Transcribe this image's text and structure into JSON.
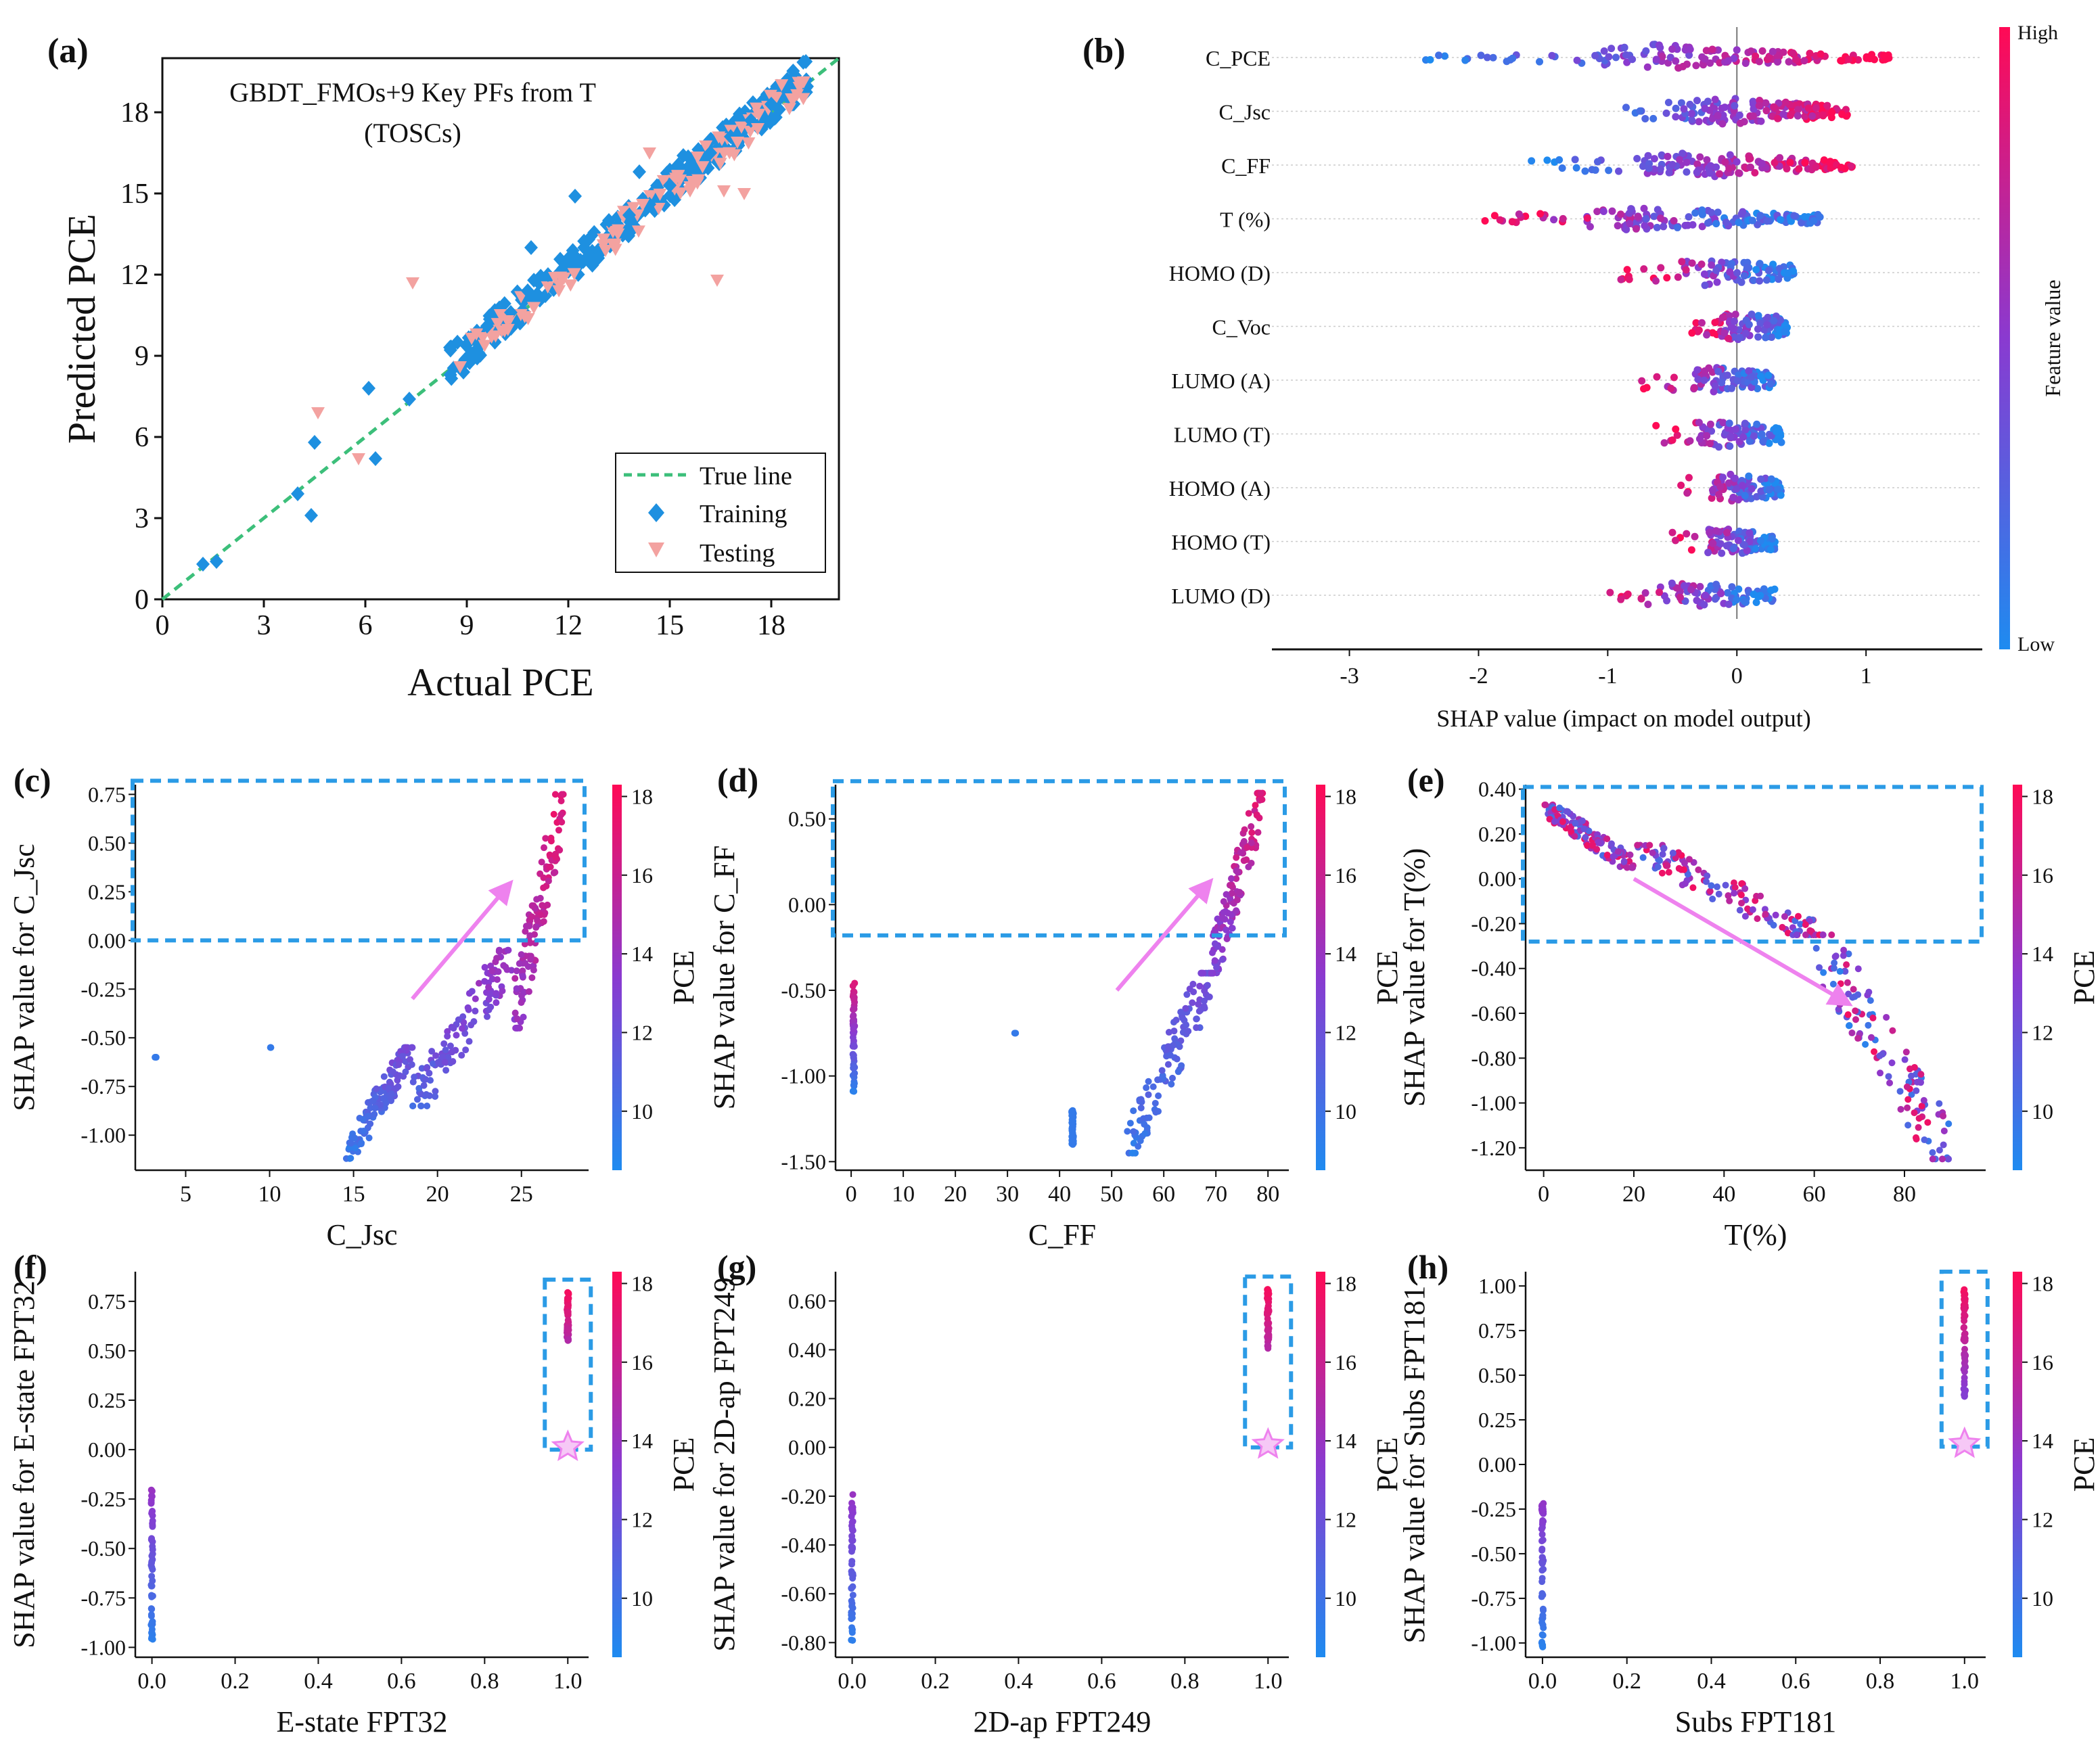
{
  "colors": {
    "low": "#1e8bf0",
    "mid": "#8a3ad0",
    "high": "#ff0a55",
    "training": "#1e90e0",
    "testing": "#f3a2a0",
    "true_line": "#3cbf7a",
    "dash_box": "#2b9be6",
    "arrow": "#ee82ee"
  },
  "chart_data": [
    {
      "id": "a",
      "panel_label": "(a)",
      "type": "scatter",
      "title": "GBDT_FMOs+9 Key PFs from T",
      "subtitle": "(TOSCs)",
      "xlabel": "Actual PCE",
      "ylabel": "Predicted PCE",
      "xlim": [
        0,
        20
      ],
      "ylim": [
        0,
        20
      ],
      "xticks": [
        "0",
        "3",
        "6",
        "9",
        "12",
        "15",
        "18"
      ],
      "yticks": [
        "0",
        "3",
        "6",
        "9",
        "12",
        "15",
        "18"
      ],
      "legend": [
        "True line",
        "Training",
        "Testing"
      ],
      "legend_position": "bottom-right",
      "true_line": [
        [
          0,
          0
        ],
        [
          20,
          20
        ]
      ],
      "series": [
        {
          "name": "Training",
          "marker": "diamond",
          "points": [
            [
              1.2,
              1.3
            ],
            [
              1.6,
              1.4
            ],
            [
              4.0,
              3.9
            ],
            [
              4.4,
              3.1
            ],
            [
              4.5,
              5.8
            ],
            [
              6.1,
              7.8
            ],
            [
              6.3,
              5.2
            ],
            [
              7.3,
              7.4
            ],
            [
              8.9,
              8.4
            ],
            [
              9.3,
              9.1
            ],
            [
              9.6,
              10.1
            ],
            [
              10.3,
              10.6
            ],
            [
              10.8,
              11.4
            ],
            [
              11.4,
              12.0
            ],
            [
              12.0,
              12.6
            ],
            [
              12.6,
              13.3
            ],
            [
              13.2,
              14.0
            ],
            [
              13.8,
              14.2
            ],
            [
              14.4,
              14.6
            ],
            [
              15.0,
              15.3
            ],
            [
              15.6,
              16.0
            ],
            [
              16.2,
              16.5
            ],
            [
              16.8,
              17.1
            ],
            [
              17.4,
              17.7
            ],
            [
              18.0,
              18.3
            ],
            [
              18.5,
              18.6
            ],
            [
              10.9,
              13.0
            ],
            [
              12.2,
              14.9
            ],
            [
              14.1,
              15.8
            ],
            [
              15.4,
              16.4
            ]
          ]
        },
        {
          "name": "Testing",
          "marker": "triangle-down",
          "points": [
            [
              4.6,
              6.9
            ],
            [
              5.8,
              5.2
            ],
            [
              7.4,
              11.7
            ],
            [
              8.8,
              8.6
            ],
            [
              10.2,
              10.3
            ],
            [
              11.6,
              11.9
            ],
            [
              13.1,
              12.9
            ],
            [
              14.2,
              14.6
            ],
            [
              14.4,
              16.5
            ],
            [
              15.6,
              15.1
            ],
            [
              16.4,
              11.8
            ],
            [
              17.0,
              16.9
            ],
            [
              17.6,
              17.4
            ],
            [
              18.6,
              18.5
            ],
            [
              16.6,
              15.1
            ],
            [
              17.2,
              15.0
            ]
          ]
        }
      ]
    },
    {
      "id": "b",
      "panel_label": "(b)",
      "type": "beeswarm",
      "xlabel": "SHAP value (impact on model output)",
      "xlim": [
        -3.6,
        1.9
      ],
      "xticks": [
        -3,
        -2,
        -1,
        0,
        1
      ],
      "features": [
        "C_PCE",
        "C_Jsc",
        "C_FF",
        "T (%)",
        "HOMO (D)",
        "C_Voc",
        "LUMO (A)",
        "LUMO (T)",
        "HOMO (A)",
        "HOMO (T)",
        "LUMO (D)"
      ],
      "feature_ranges": [
        [
          -2.45,
          1.22
        ],
        [
          -1.0,
          0.9
        ],
        [
          -1.6,
          0.9
        ],
        [
          -1.95,
          0.65
        ],
        [
          -0.9,
          0.45
        ],
        [
          -0.35,
          0.4
        ],
        [
          -0.75,
          0.3
        ],
        [
          -0.65,
          0.35
        ],
        [
          -0.45,
          0.35
        ],
        [
          -0.5,
          0.3
        ],
        [
          -1.05,
          0.3
        ]
      ],
      "colorbar": {
        "label": "Feature value",
        "high": "High",
        "low": "Low"
      }
    },
    {
      "id": "c",
      "panel_label": "(c)",
      "type": "scatter",
      "xlabel": "C_Jsc",
      "ylabel": "SHAP value for C_Jsc",
      "xlim": [
        2,
        29
      ],
      "ylim": [
        -1.18,
        0.8
      ],
      "xticks": [
        "5",
        "10",
        "15",
        "20",
        "25"
      ],
      "yticks": [
        "-1.00",
        "-0.75",
        "-0.50",
        "-0.25",
        "0.00",
        "0.25",
        "0.50",
        "0.75"
      ],
      "highlight_box_y": [
        0.0,
        0.82
      ],
      "arrow": [
        [
          18.5,
          -0.3
        ],
        [
          24.2,
          0.28
        ]
      ],
      "colorbar": {
        "label": "PCE",
        "ticks": [
          "10",
          "12",
          "14",
          "16",
          "18"
        ]
      },
      "clusters": [
        {
          "x": 3.2,
          "y": [
            -0.6
          ],
          "pce": 9.5
        },
        {
          "x": 10.1,
          "y": [
            -0.55
          ],
          "pce": 9.5
        },
        {
          "x_range": [
            14.5,
            18.5
          ],
          "y_range": [
            -1.12,
            -0.55
          ],
          "pce_range": [
            9,
            13
          ]
        },
        {
          "x_range": [
            18.5,
            24.5
          ],
          "y_range": [
            -0.85,
            -0.05
          ],
          "pce_range": [
            10,
            15
          ]
        },
        {
          "x_range": [
            24.5,
            27.5
          ],
          "y_range": [
            -0.45,
            0.75
          ],
          "pce_range": [
            13,
            18
          ]
        }
      ]
    },
    {
      "id": "d",
      "panel_label": "(d)",
      "type": "scatter",
      "xlabel": "C_FF",
      "ylabel": "SHAP value for C_FF",
      "xlim": [
        -3,
        84
      ],
      "ylim": [
        -1.55,
        0.7
      ],
      "xticks": [
        "0",
        "10",
        "20",
        "30",
        "40",
        "50",
        "60",
        "70",
        "80"
      ],
      "yticks": [
        "-1.50",
        "-1.00",
        "-0.50",
        "0.00",
        "0.50"
      ],
      "highlight_box_y": [
        -0.18,
        0.72
      ],
      "arrow": [
        [
          51,
          -0.5
        ],
        [
          68.5,
          0.12
        ]
      ],
      "colorbar": {
        "label": "PCE",
        "ticks": [
          "10",
          "12",
          "14",
          "16",
          "18"
        ]
      },
      "clusters": [
        {
          "x": 0.5,
          "y_range": [
            -1.1,
            -0.45
          ],
          "pce_range": [
            9,
            17
          ]
        },
        {
          "x": 31.5,
          "y": [
            -0.75
          ],
          "pce": 9.5
        },
        {
          "x": 42.5,
          "y_range": [
            -1.4,
            -1.2
          ],
          "pce": 9.5
        },
        {
          "x_range": [
            53,
            69
          ],
          "y_range": [
            -1.45,
            -0.4
          ],
          "pce_range": [
            9,
            13
          ]
        },
        {
          "x_range": [
            69,
            79
          ],
          "y_range": [
            -0.4,
            0.65
          ],
          "pce_range": [
            12,
            18
          ]
        }
      ]
    },
    {
      "id": "e",
      "panel_label": "(e)",
      "type": "scatter",
      "xlabel": "T(%)",
      "ylabel": "SHAP value for T(%)",
      "xlim": [
        -4,
        98
      ],
      "ylim": [
        -1.3,
        0.42
      ],
      "xticks": [
        "0",
        "20",
        "40",
        "60",
        "80"
      ],
      "yticks": [
        "-1.20",
        "-1.00",
        "-0.80",
        "-0.60",
        "-0.40",
        "-0.20",
        "0.00",
        "0.20",
        "0.40"
      ],
      "highlight_box_y": [
        -0.28,
        0.41
      ],
      "arrow": [
        [
          20,
          0.0
        ],
        [
          67,
          -0.55
        ]
      ],
      "colorbar": {
        "label": "PCE",
        "ticks": [
          "10",
          "12",
          "14",
          "16",
          "18"
        ]
      },
      "clusters": [
        {
          "x_range": [
            0,
            20
          ],
          "y_range": [
            0.05,
            0.33
          ],
          "pce_range": [
            10,
            18
          ]
        },
        {
          "x_range": [
            20,
            60
          ],
          "y_range": [
            -0.25,
            0.15
          ],
          "pce_range": [
            10,
            18
          ]
        },
        {
          "x_range": [
            60,
            90
          ],
          "y_range": [
            -1.25,
            -0.25
          ],
          "pce_range": [
            9,
            18
          ]
        }
      ]
    },
    {
      "id": "f",
      "panel_label": "(f)",
      "type": "scatter",
      "xlabel": "E-state FPT32",
      "ylabel": "SHAP value for E-state FPT32",
      "xlim": [
        -0.04,
        1.05
      ],
      "ylim": [
        -1.05,
        0.9
      ],
      "xticks": [
        "0.0",
        "0.2",
        "0.4",
        "0.6",
        "0.8",
        "1.0"
      ],
      "yticks": [
        "-1.00",
        "-0.75",
        "-0.50",
        "-0.25",
        "0.00",
        "0.25",
        "0.50",
        "0.75"
      ],
      "highlight_box_y": [
        0.0,
        0.86
      ],
      "colorbar": {
        "label": "PCE",
        "ticks": [
          "10",
          "12",
          "14",
          "16",
          "18"
        ]
      },
      "clusters": [
        {
          "x": 0.0,
          "y_range": [
            -0.98,
            -0.2
          ],
          "pce_range": [
            9,
            14
          ]
        },
        {
          "x": 1.0,
          "y_range": [
            0.55,
            0.8
          ],
          "pce_range": [
            15,
            18
          ]
        }
      ]
    },
    {
      "id": "g",
      "panel_label": "(g)",
      "type": "scatter",
      "xlabel": "2D-ap FPT249",
      "ylabel": "SHAP value for 2D-ap FPT249",
      "xlim": [
        -0.04,
        1.05
      ],
      "ylim": [
        -0.86,
        0.72
      ],
      "xticks": [
        "0.0",
        "0.2",
        "0.4",
        "0.6",
        "0.8",
        "1.0"
      ],
      "yticks": [
        "-0.80",
        "-0.60",
        "-0.40",
        "-0.20",
        "0.00",
        "0.20",
        "0.40",
        "0.60"
      ],
      "highlight_box_y": [
        0.0,
        0.7
      ],
      "colorbar": {
        "label": "PCE",
        "ticks": [
          "10",
          "12",
          "14",
          "16",
          "18"
        ]
      },
      "clusters": [
        {
          "x": 0.0,
          "y_range": [
            -0.82,
            -0.19
          ],
          "pce_range": [
            9,
            14
          ]
        },
        {
          "x": 1.0,
          "y_range": [
            0.4,
            0.65
          ],
          "pce_range": [
            15,
            18
          ]
        }
      ]
    },
    {
      "id": "h",
      "panel_label": "(h)",
      "type": "scatter",
      "xlabel": "Subs FPT181",
      "ylabel": "SHAP value for Subs FPT181",
      "xlim": [
        -0.04,
        1.05
      ],
      "ylim": [
        -1.08,
        1.08
      ],
      "xticks": [
        "0.0",
        "0.2",
        "0.4",
        "0.6",
        "0.8",
        "1.0"
      ],
      "yticks": [
        "-1.00",
        "-0.75",
        "-0.50",
        "-0.25",
        "0.00",
        "0.25",
        "0.50",
        "0.75",
        "1.00"
      ],
      "highlight_box_y": [
        0.1,
        1.08
      ],
      "colorbar": {
        "label": "PCE",
        "ticks": [
          "10",
          "12",
          "14",
          "16",
          "18"
        ]
      },
      "clusters": [
        {
          "x": 0.0,
          "y_range": [
            -1.03,
            -0.18
          ],
          "pce_range": [
            9,
            14
          ]
        },
        {
          "x": 1.0,
          "y_range": [
            0.38,
            1.0
          ],
          "pce_range": [
            13,
            18
          ]
        }
      ]
    }
  ]
}
